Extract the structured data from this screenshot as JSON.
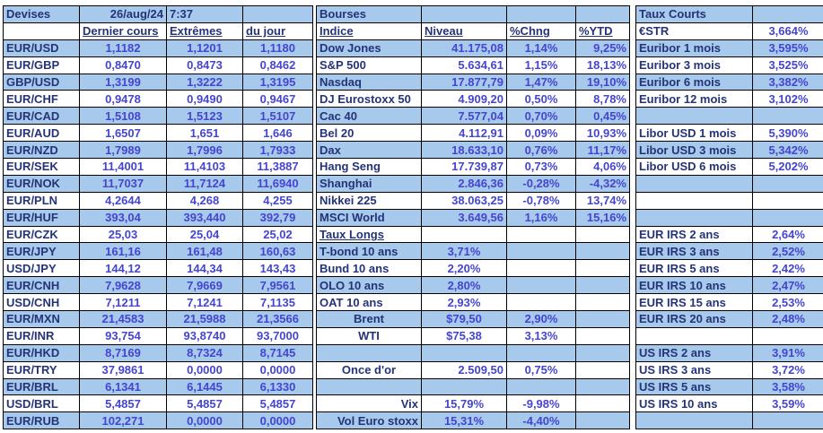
{
  "meta": {
    "date": "26/aug/24",
    "time": "7:37"
  },
  "colors": {
    "band_blue": "#A6C9EC",
    "label_navy": "#253377",
    "value_blue": "#4545D0",
    "border_black": "#000000"
  },
  "tables": [
    {
      "id": "devises",
      "title": "Devises",
      "column_headers": [
        "Dernier cours",
        "Extrêmes",
        "du jour"
      ],
      "rows": [
        [
          [
            "Devises",
            "t",
            "section-title"
          ],
          [
            "26/aug/24",
            "br",
            "date-label"
          ],
          [
            "7:37",
            "l",
            "time-label"
          ],
          []
        ],
        [
          [],
          [
            "Dernier cours",
            "h"
          ],
          [
            "Extrêmes",
            "h"
          ],
          [
            "du jour",
            "h"
          ]
        ],
        [
          [
            "EUR/USD",
            "l",
            "currency-pair-label"
          ],
          [
            "1,1182",
            "v"
          ],
          [
            "1,1201",
            "v"
          ],
          [
            "1,1180",
            "v"
          ]
        ],
        [
          [
            "EUR/GBP",
            "l",
            "currency-pair-label"
          ],
          [
            "0,8470",
            "v"
          ],
          [
            "0,8473",
            "v"
          ],
          [
            "0,8462",
            "v"
          ]
        ],
        [
          [
            "GBP/USD",
            "l",
            "currency-pair-label"
          ],
          [
            "1,3199",
            "v"
          ],
          [
            "1,3222",
            "v"
          ],
          [
            "1,3195",
            "v"
          ]
        ],
        [
          [
            "EUR/CHF",
            "l",
            "currency-pair-label"
          ],
          [
            "0,9478",
            "v"
          ],
          [
            "0,9490",
            "v"
          ],
          [
            "0,9467",
            "v"
          ]
        ],
        [
          [
            "EUR/CAD",
            "l",
            "currency-pair-label"
          ],
          [
            "1,5108",
            "v"
          ],
          [
            "1,5123",
            "v"
          ],
          [
            "1,5107",
            "v"
          ]
        ],
        [
          [
            "EUR/AUD",
            "l",
            "currency-pair-label"
          ],
          [
            "1,6507",
            "v"
          ],
          [
            "1,651",
            "v"
          ],
          [
            "1,646",
            "v"
          ]
        ],
        [
          [
            "EUR/NZD",
            "l",
            "currency-pair-label"
          ],
          [
            "1,7989",
            "v"
          ],
          [
            "1,7996",
            "v"
          ],
          [
            "1,7933",
            "v"
          ]
        ],
        [
          [
            "EUR/SEK",
            "l",
            "currency-pair-label"
          ],
          [
            "11,4001",
            "v"
          ],
          [
            "11,4103",
            "v"
          ],
          [
            "11,3887",
            "v"
          ]
        ],
        [
          [
            "EUR/NOK",
            "l",
            "currency-pair-label"
          ],
          [
            "11,7037",
            "v"
          ],
          [
            "11,7124",
            "v"
          ],
          [
            "11,6940",
            "v"
          ]
        ],
        [
          [
            "EUR/PLN",
            "l",
            "currency-pair-label"
          ],
          [
            "4,2644",
            "v"
          ],
          [
            "4,268",
            "v"
          ],
          [
            "4,255",
            "v"
          ]
        ],
        [
          [
            "EUR/HUF",
            "l",
            "currency-pair-label"
          ],
          [
            "393,04",
            "v"
          ],
          [
            "393,440",
            "v"
          ],
          [
            "392,79",
            "v"
          ]
        ],
        [
          [
            "EUR/CZK",
            "l",
            "currency-pair-label"
          ],
          [
            "25,03",
            "v"
          ],
          [
            "25,04",
            "v"
          ],
          [
            "25,02",
            "v"
          ]
        ],
        [
          [
            "EUR/JPY",
            "l",
            "currency-pair-label"
          ],
          [
            "161,16",
            "v"
          ],
          [
            "161,48",
            "v"
          ],
          [
            "160,63",
            "v"
          ]
        ],
        [
          [
            "USD/JPY",
            "l",
            "currency-pair-label"
          ],
          [
            "144,12",
            "v"
          ],
          [
            "144,34",
            "v"
          ],
          [
            "143,43",
            "v"
          ]
        ],
        [
          [
            "EUR/CNH",
            "l",
            "currency-pair-label"
          ],
          [
            "7,9628",
            "v"
          ],
          [
            "7,9669",
            "v"
          ],
          [
            "7,9561",
            "v"
          ]
        ],
        [
          [
            "USD/CNH",
            "l",
            "currency-pair-label"
          ],
          [
            "7,1211",
            "v"
          ],
          [
            "7,1241",
            "v"
          ],
          [
            "7,1135",
            "v"
          ]
        ],
        [
          [
            "EUR/MXN",
            "l",
            "currency-pair-label"
          ],
          [
            "21,4583",
            "v"
          ],
          [
            "21,5988",
            "v"
          ],
          [
            "21,3566",
            "v"
          ]
        ],
        [
          [
            "EUR/INR",
            "l",
            "currency-pair-label"
          ],
          [
            "93,754",
            "v"
          ],
          [
            "93,8740",
            "v"
          ],
          [
            "93,7000",
            "v"
          ]
        ],
        [
          [
            "EUR/HKD",
            "l",
            "currency-pair-label"
          ],
          [
            "8,7169",
            "v"
          ],
          [
            "8,7324",
            "v"
          ],
          [
            "8,7145",
            "v"
          ]
        ],
        [
          [
            "EUR/TRY",
            "l",
            "currency-pair-label"
          ],
          [
            "37,9861",
            "v"
          ],
          [
            "0,0000",
            "v"
          ],
          [
            "0,0000",
            "v"
          ]
        ],
        [
          [
            "EUR/BRL",
            "l",
            "currency-pair-label"
          ],
          [
            "6,1341",
            "v"
          ],
          [
            "6,1445",
            "v"
          ],
          [
            "6,1330",
            "v"
          ]
        ],
        [
          [
            "USD/BRL",
            "l",
            "currency-pair-label"
          ],
          [
            "5,4857",
            "v"
          ],
          [
            "5,4857",
            "v"
          ],
          [
            "5,4857",
            "v"
          ]
        ],
        [
          [
            "EUR/RUB",
            "l",
            "currency-pair-label"
          ],
          [
            "102,271",
            "v"
          ],
          [
            "0,0000",
            "v"
          ],
          [
            "0,0000",
            "v"
          ]
        ]
      ]
    },
    {
      "id": "bourses",
      "title": "Bourses",
      "column_headers": [
        "Indice",
        "Niveau",
        "%Chng",
        "%YTD"
      ],
      "rows": [
        [
          [
            "Bourses",
            "t",
            "section-title"
          ],
          [],
          [],
          []
        ],
        [
          [
            "Indice",
            "h"
          ],
          [
            "Niveau",
            "h"
          ],
          [
            "%Chng",
            "h"
          ],
          [
            "%YTD",
            "h"
          ]
        ],
        [
          [
            "Dow Jones",
            "l",
            "index-name-label"
          ],
          [
            "41.175,08",
            "vr"
          ],
          [
            "1,14%",
            "v"
          ],
          [
            "9,25%",
            "vr"
          ]
        ],
        [
          [
            "S&P 500",
            "l",
            "index-name-label"
          ],
          [
            "5.634,61",
            "vr"
          ],
          [
            "1,15%",
            "v"
          ],
          [
            "18,13%",
            "vr"
          ]
        ],
        [
          [
            "Nasdaq",
            "l",
            "index-name-label"
          ],
          [
            "17.877,79",
            "vr"
          ],
          [
            "1,47%",
            "v"
          ],
          [
            "19,10%",
            "vr"
          ]
        ],
        [
          [
            "DJ Eurostoxx 50",
            "l",
            "index-name-label"
          ],
          [
            "4.909,20",
            "vr"
          ],
          [
            "0,50%",
            "v"
          ],
          [
            "8,78%",
            "vr"
          ]
        ],
        [
          [
            "Cac 40",
            "l",
            "index-name-label"
          ],
          [
            "7.577,04",
            "vr"
          ],
          [
            "0,70%",
            "v"
          ],
          [
            "0,45%",
            "vr"
          ]
        ],
        [
          [
            "Bel 20",
            "l",
            "index-name-label"
          ],
          [
            "4.112,91",
            "vr"
          ],
          [
            "0,09%",
            "v"
          ],
          [
            "10,93%",
            "vr"
          ]
        ],
        [
          [
            "Dax",
            "l",
            "index-name-label"
          ],
          [
            "18.633,10",
            "vr"
          ],
          [
            "0,76%",
            "v"
          ],
          [
            "11,17%",
            "vr"
          ]
        ],
        [
          [
            "Hang Seng",
            "l",
            "index-name-label"
          ],
          [
            "17.739,87",
            "vr"
          ],
          [
            "0,73%",
            "v"
          ],
          [
            "4,06%",
            "vr"
          ]
        ],
        [
          [
            "Shanghai",
            "l",
            "index-name-label"
          ],
          [
            "2.846,36",
            "vr"
          ],
          [
            "-0,28%",
            "v"
          ],
          [
            "-4,32%",
            "vr"
          ]
        ],
        [
          [
            "Nikkei 225",
            "l",
            "index-name-label"
          ],
          [
            "38.063,25",
            "vr"
          ],
          [
            "-0,78%",
            "v"
          ],
          [
            "13,74%",
            "vr"
          ]
        ],
        [
          [
            "MSCI World",
            "l",
            "index-name-label"
          ],
          [
            "3.649,56",
            "vr"
          ],
          [
            "1,16%",
            "v"
          ],
          [
            "15,16%",
            "vr"
          ]
        ],
        [
          [
            "Taux Longs",
            "h",
            "subsection-title"
          ],
          [],
          [],
          []
        ],
        [
          [
            "T-bond 10 ans",
            "l",
            "bond-label"
          ],
          [
            "3,71%",
            "v"
          ],
          [],
          []
        ],
        [
          [
            "Bund 10 ans",
            "l",
            "bond-label"
          ],
          [
            "2,20%",
            "v"
          ],
          [],
          []
        ],
        [
          [
            "OLO 10 ans",
            "l",
            "bond-label"
          ],
          [
            "2,80%",
            "v"
          ],
          [],
          []
        ],
        [
          [
            "OAT 10 ans",
            "l",
            "bond-label"
          ],
          [
            "2,93%",
            "v"
          ],
          [],
          []
        ],
        [
          [
            "Brent",
            "lc",
            "commodity-label"
          ],
          [
            "$79,50",
            "v"
          ],
          [
            "2,90%",
            "v"
          ],
          []
        ],
        [
          [
            "WTI",
            "lc",
            "commodity-label"
          ],
          [
            "$75,38",
            "v"
          ],
          [
            "3,13%",
            "v"
          ],
          []
        ],
        [
          [],
          [],
          [],
          []
        ],
        [
          [
            "Once d'or",
            "lc",
            "commodity-label"
          ],
          [
            "2.509,50",
            "vr"
          ],
          [
            "0,75%",
            "v"
          ],
          []
        ],
        [
          [],
          [],
          [],
          []
        ],
        [
          [
            "Vix",
            "lr",
            "volatility-label"
          ],
          [
            "15,79%",
            "v"
          ],
          [
            "-9,98%",
            "v"
          ],
          []
        ],
        [
          [
            "Vol Euro stoxx",
            "lr",
            "volatility-label"
          ],
          [
            "15,31%",
            "v"
          ],
          [
            "-4,40%",
            "v"
          ],
          []
        ]
      ]
    },
    {
      "id": "taux_courts",
      "title": "Taux Courts",
      "rows": [
        [
          [
            "Taux Courts",
            "t",
            "section-title"
          ],
          []
        ],
        [
          [
            "€STR",
            "l",
            "rate-label"
          ],
          [
            "3,664%",
            "v"
          ]
        ],
        [
          [
            "Euribor 1 mois",
            "l",
            "rate-label"
          ],
          [
            "3,595%",
            "v"
          ]
        ],
        [
          [
            "Euribor 3 mois",
            "l",
            "rate-label"
          ],
          [
            "3,525%",
            "v"
          ]
        ],
        [
          [
            "Euribor 6 mois",
            "l",
            "rate-label"
          ],
          [
            "3,382%",
            "v"
          ]
        ],
        [
          [
            "Euribor 12 mois",
            "l",
            "rate-label"
          ],
          [
            "3,102%",
            "v"
          ]
        ],
        [
          [],
          []
        ],
        [
          [
            "Libor USD 1 mois",
            "l",
            "rate-label"
          ],
          [
            "5,390%",
            "v"
          ]
        ],
        [
          [
            "Libor USD 3 mois",
            "l",
            "rate-label"
          ],
          [
            "5,342%",
            "v"
          ]
        ],
        [
          [
            "Libor USD 6 mois",
            "l",
            "rate-label"
          ],
          [
            "5,202%",
            "v"
          ]
        ],
        [
          [],
          []
        ],
        [
          [],
          []
        ],
        [
          [],
          []
        ],
        [
          [
            "EUR IRS 2 ans",
            "l",
            "rate-label"
          ],
          [
            "2,64%",
            "v"
          ]
        ],
        [
          [
            "EUR IRS 3 ans",
            "l",
            "rate-label"
          ],
          [
            "2,52%",
            "v"
          ]
        ],
        [
          [
            "EUR IRS 5 ans",
            "l",
            "rate-label"
          ],
          [
            "2,42%",
            "v"
          ]
        ],
        [
          [
            "EUR IRS 10 ans",
            "l",
            "rate-label"
          ],
          [
            "2,47%",
            "v"
          ]
        ],
        [
          [
            "EUR IRS 15 ans",
            "l",
            "rate-label"
          ],
          [
            "2,53%",
            "v"
          ]
        ],
        [
          [
            "EUR IRS 20 ans",
            "l",
            "rate-label"
          ],
          [
            "2,48%",
            "v"
          ]
        ],
        [
          [],
          []
        ],
        [
          [
            "US IRS 2 ans",
            "l",
            "rate-label"
          ],
          [
            "3,91%",
            "v"
          ]
        ],
        [
          [
            "US IRS 3 ans",
            "l",
            "rate-label"
          ],
          [
            "3,72%",
            "v"
          ]
        ],
        [
          [
            "US IRS 5 ans",
            "l",
            "rate-label"
          ],
          [
            "3,58%",
            "v"
          ]
        ],
        [
          [
            "US IRS 10 ans",
            "l",
            "rate-label"
          ],
          [
            "3,59%",
            "v"
          ]
        ],
        [
          [],
          []
        ]
      ]
    }
  ]
}
